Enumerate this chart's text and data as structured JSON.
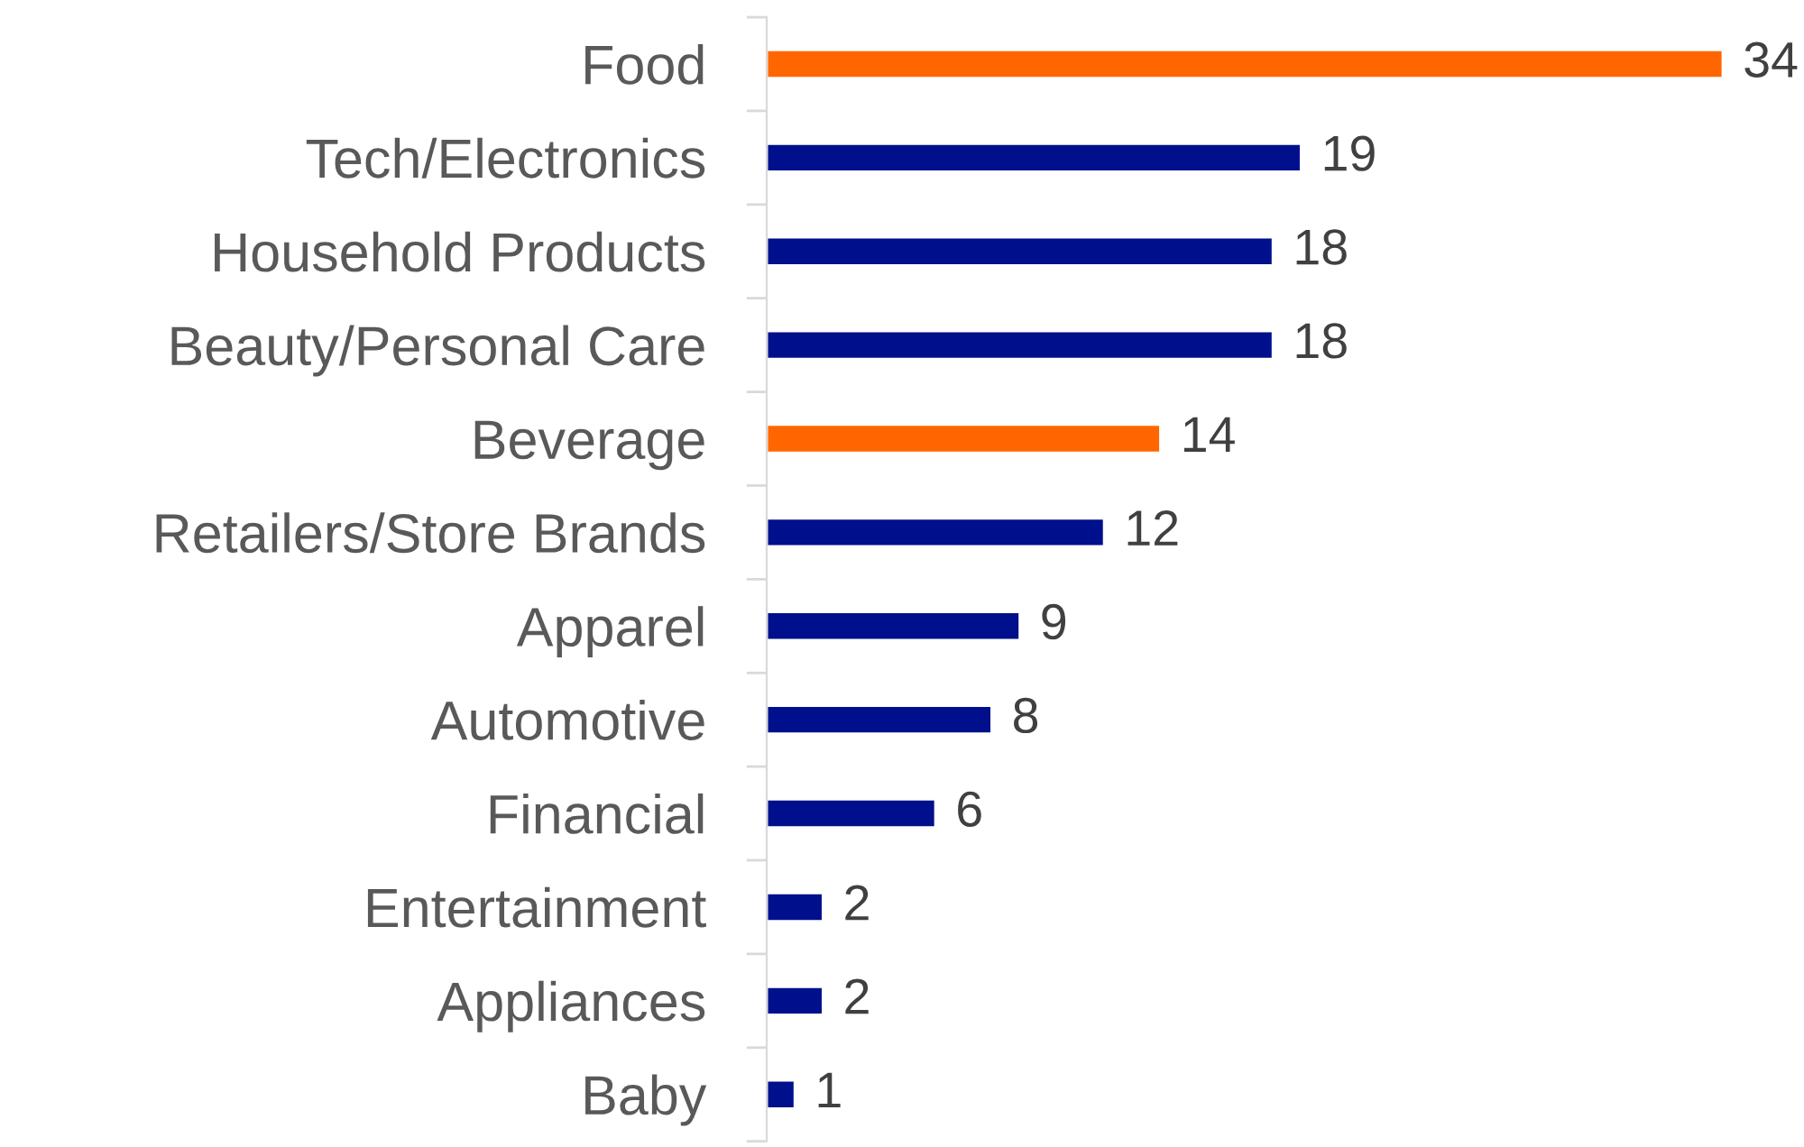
{
  "chart_data": {
    "type": "bar",
    "orientation": "horizontal",
    "categories": [
      "Food",
      "Tech/Electronics",
      "Household Products",
      "Beauty/Personal Care",
      "Beverage",
      "Retailers/Store Brands",
      "Apparel",
      "Automotive",
      "Financial",
      "Entertainment",
      "Appliances",
      "Baby"
    ],
    "values": [
      34,
      19,
      18,
      18,
      14,
      12,
      9,
      8,
      6,
      2,
      2,
      1
    ],
    "colors": [
      "#ff6600",
      "#000f8c",
      "#000f8c",
      "#000f8c",
      "#ff6600",
      "#000f8c",
      "#000f8c",
      "#000f8c",
      "#000f8c",
      "#000f8c",
      "#000f8c",
      "#000f8c"
    ],
    "data_labels": true,
    "grid": false,
    "legend": false
  }
}
